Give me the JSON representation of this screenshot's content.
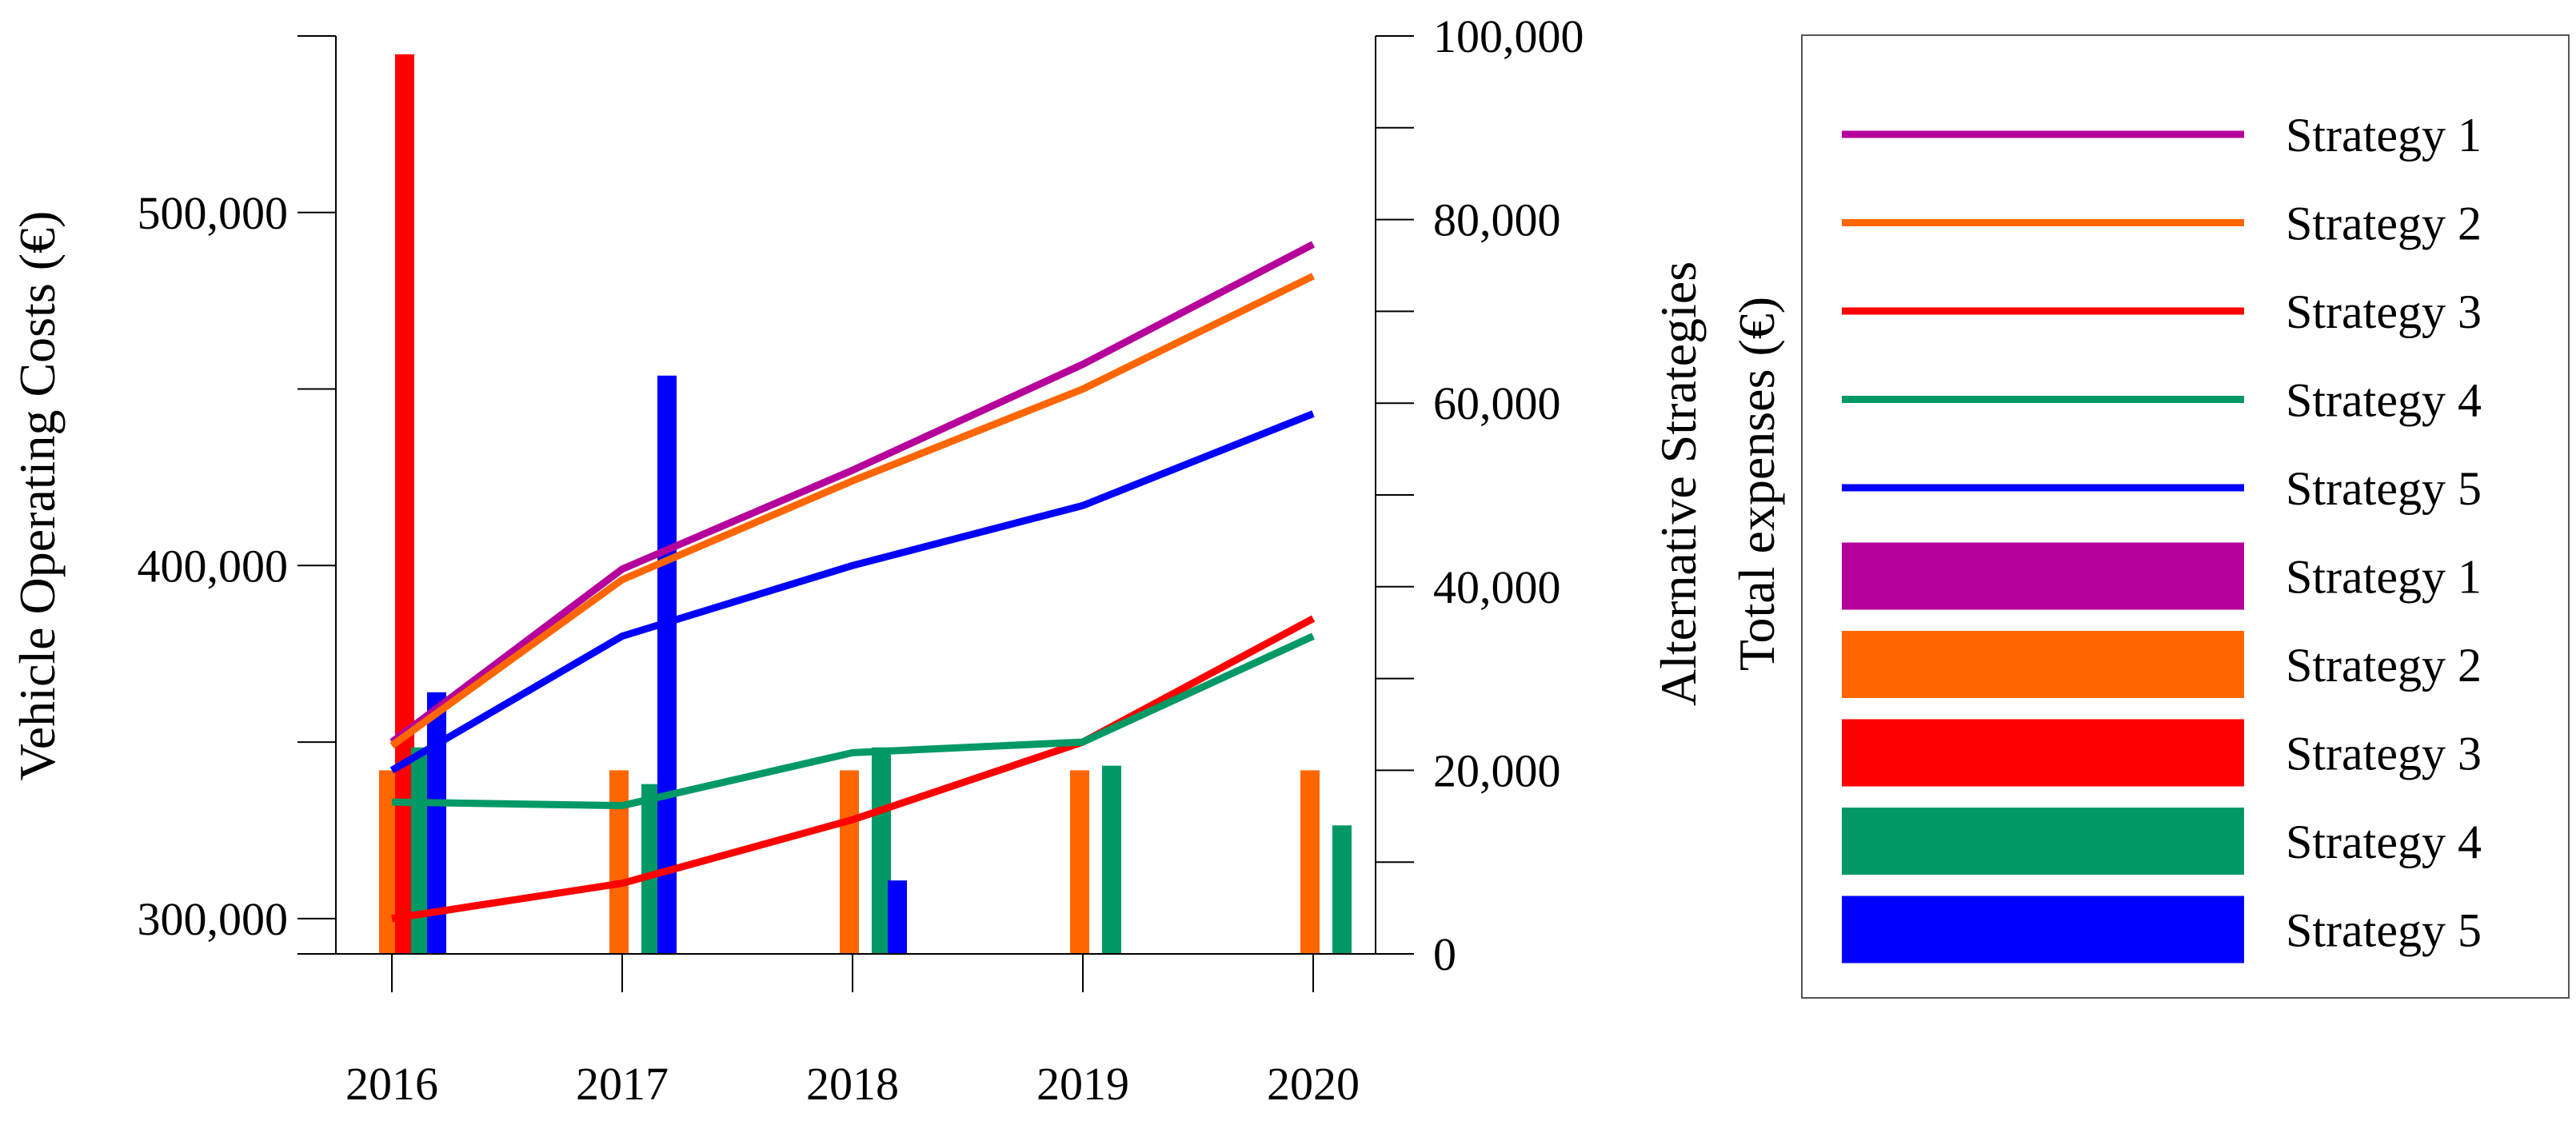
{
  "chart_data": {
    "type": "bar+line",
    "categories": [
      "2016",
      "2017",
      "2018",
      "2019",
      "2020"
    ],
    "left_axis": {
      "label": "Vehicle Operating Costs (€)",
      "range": [
        290000,
        550000
      ],
      "major_ticks": [
        300000,
        400000,
        500000
      ],
      "major_tick_labels": [
        "300,000",
        "400,000",
        "500,000"
      ],
      "minor_ticks": [
        350000,
        450000,
        550000
      ]
    },
    "right_axis": {
      "label_line1": "Alternative Strategies",
      "label_line2": "Total expenses (€)",
      "range": [
        0,
        100000
      ],
      "major_ticks": [
        0,
        20000,
        40000,
        60000,
        80000,
        100000
      ],
      "major_tick_labels": [
        "0",
        "20,000",
        "40,000",
        "60,000",
        "80,000",
        "100,000"
      ],
      "minor_ticks": [
        10000,
        30000,
        50000,
        70000,
        90000
      ]
    },
    "line_series": [
      {
        "name": "Strategy 1",
        "color": "#b5009b",
        "values": [
          350000,
          399000,
          427000,
          457000,
          491000
        ]
      },
      {
        "name": "Strategy 2",
        "color": "#ff6600",
        "values": [
          349000,
          396000,
          424000,
          450000,
          482000
        ]
      },
      {
        "name": "Strategy 3",
        "color": "#ff0000",
        "values": [
          300000,
          310000,
          328000,
          350000,
          385000
        ]
      },
      {
        "name": "Strategy 4",
        "color": "#009966",
        "values": [
          333000,
          332000,
          347000,
          350000,
          380000
        ]
      },
      {
        "name": "Strategy 5",
        "color": "#0000ff",
        "values": [
          342000,
          380000,
          400000,
          417000,
          443000
        ]
      }
    ],
    "bar_series": [
      {
        "name": "Strategy 1",
        "color": "#b5009b",
        "values": [
          0,
          0,
          0,
          0,
          0
        ]
      },
      {
        "name": "Strategy 2",
        "color": "#ff6600",
        "values": [
          20000,
          20000,
          20000,
          20000,
          20000
        ]
      },
      {
        "name": "Strategy 3",
        "color": "#ff0000",
        "values": [
          98000,
          0,
          0,
          0,
          0
        ]
      },
      {
        "name": "Strategy 4",
        "color": "#009966",
        "values": [
          22500,
          18500,
          22500,
          20500,
          14000
        ]
      },
      {
        "name": "Strategy 5",
        "color": "#0000ff",
        "values": [
          28500,
          63000,
          8000,
          0,
          0
        ]
      }
    ],
    "legend": {
      "placement": "right",
      "line_entries": [
        "Strategy 1",
        "Strategy 2",
        "Strategy 3",
        "Strategy 4",
        "Strategy 5"
      ],
      "bar_entries": [
        "Strategy 1",
        "Strategy 2",
        "Strategy 3",
        "Strategy 4",
        "Strategy 5"
      ]
    },
    "grid": false
  }
}
